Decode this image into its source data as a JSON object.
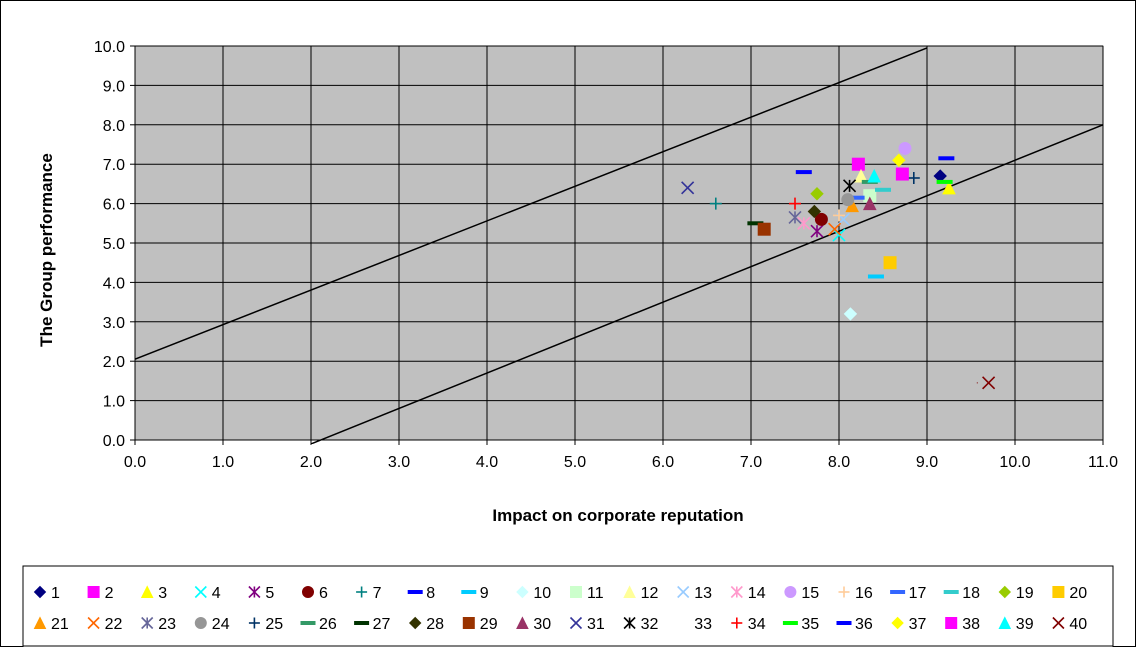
{
  "chart_data": {
    "type": "scatter",
    "title": "",
    "xlabel": "Impact on corporate reputation",
    "ylabel": "The Group performance",
    "xlim": [
      0.0,
      11.0
    ],
    "ylim": [
      0.0,
      10.0
    ],
    "x_ticks": [
      "0.0",
      "1.0",
      "2.0",
      "3.0",
      "4.0",
      "5.0",
      "6.0",
      "7.0",
      "8.0",
      "9.0",
      "10.0",
      "11.0"
    ],
    "y_ticks": [
      "0.0",
      "1.0",
      "2.0",
      "3.0",
      "4.0",
      "5.0",
      "6.0",
      "7.0",
      "8.0",
      "9.0",
      "10.0"
    ],
    "grid": true,
    "plot_background": "#c0c0c0",
    "legend_position": "bottom",
    "reference_lines": [
      {
        "x": [
          0.0,
          9.0
        ],
        "y": [
          2.05,
          9.95
        ]
      },
      {
        "x": [
          2.0,
          11.0
        ],
        "y": [
          -0.1,
          8.0
        ]
      }
    ],
    "series": [
      {
        "name": "1",
        "marker": "diamond",
        "color": "#000080",
        "x": 9.15,
        "y": 6.7
      },
      {
        "name": "2",
        "marker": "square",
        "color": "#ff00ff",
        "x": 8.22,
        "y": 7.0
      },
      {
        "name": "3",
        "marker": "triangle",
        "color": "#ffff00",
        "x": 9.25,
        "y": 6.4
      },
      {
        "name": "4",
        "marker": "x",
        "color": "#00ffff",
        "x": 8.0,
        "y": 5.2
      },
      {
        "name": "5",
        "marker": "star",
        "color": "#800080",
        "x": 7.75,
        "y": 5.3
      },
      {
        "name": "6",
        "marker": "circle",
        "color": "#800000",
        "x": 7.8,
        "y": 5.6
      },
      {
        "name": "7",
        "marker": "plus",
        "color": "#008080",
        "x": 6.6,
        "y": 6.0
      },
      {
        "name": "8",
        "marker": "dash",
        "color": "#0000ff",
        "x": 7.6,
        "y": 6.8
      },
      {
        "name": "9",
        "marker": "dash",
        "color": "#00ccff",
        "x": 8.42,
        "y": 4.15
      },
      {
        "name": "10",
        "marker": "diamond",
        "color": "#ccffff",
        "x": 8.13,
        "y": 3.2
      },
      {
        "name": "11",
        "marker": "square",
        "color": "#ccffcc",
        "x": 8.35,
        "y": 6.2
      },
      {
        "name": "12",
        "marker": "triangle",
        "color": "#ffff99",
        "x": 8.25,
        "y": 6.7
      },
      {
        "name": "13",
        "marker": "x",
        "color": "#99ccff",
        "x": 8.05,
        "y": 5.6
      },
      {
        "name": "14",
        "marker": "star",
        "color": "#ff99cc",
        "x": 7.6,
        "y": 5.5
      },
      {
        "name": "15",
        "marker": "circle",
        "color": "#cc99ff",
        "x": 8.75,
        "y": 7.4
      },
      {
        "name": "16",
        "marker": "plus",
        "color": "#ffcc99",
        "x": 8.0,
        "y": 5.7
      },
      {
        "name": "17",
        "marker": "dash",
        "color": "#3366ff",
        "x": 8.2,
        "y": 6.15
      },
      {
        "name": "18",
        "marker": "dash",
        "color": "#33cccc",
        "x": 8.5,
        "y": 6.35
      },
      {
        "name": "19",
        "marker": "diamond",
        "color": "#99cc00",
        "x": 7.75,
        "y": 6.25
      },
      {
        "name": "20",
        "marker": "square",
        "color": "#ffcc00",
        "x": 8.58,
        "y": 4.5
      },
      {
        "name": "21",
        "marker": "triangle",
        "color": "#ff9900",
        "x": 8.15,
        "y": 5.95
      },
      {
        "name": "22",
        "marker": "x",
        "color": "#ff6600",
        "x": 7.95,
        "y": 5.35
      },
      {
        "name": "23",
        "marker": "star",
        "color": "#666699",
        "x": 7.5,
        "y": 5.65
      },
      {
        "name": "24",
        "marker": "circle",
        "color": "#969696",
        "x": 8.1,
        "y": 6.1
      },
      {
        "name": "25",
        "marker": "plus",
        "color": "#003366",
        "x": 8.85,
        "y": 6.65
      },
      {
        "name": "26",
        "marker": "dash",
        "color": "#339966",
        "x": 8.35,
        "y": 6.55
      },
      {
        "name": "27",
        "marker": "dash",
        "color": "#003300",
        "x": 7.05,
        "y": 5.5
      },
      {
        "name": "28",
        "marker": "diamond",
        "color": "#333300",
        "x": 7.72,
        "y": 5.8
      },
      {
        "name": "29",
        "marker": "square",
        "color": "#993300",
        "x": 7.15,
        "y": 5.35
      },
      {
        "name": "30",
        "marker": "triangle",
        "color": "#993366",
        "x": 8.35,
        "y": 6.0
      },
      {
        "name": "31",
        "marker": "x",
        "color": "#333399",
        "x": 6.28,
        "y": 6.4
      },
      {
        "name": "32",
        "marker": "star",
        "color": "#000000",
        "x": 8.12,
        "y": 6.45
      },
      {
        "name": "33",
        "marker": "none",
        "color": "#c0c0c0",
        "x": 9.6,
        "y": 1.45
      },
      {
        "name": "34",
        "marker": "plus",
        "color": "#ff0000",
        "x": 7.5,
        "y": 6.0
      },
      {
        "name": "35",
        "marker": "dash",
        "color": "#00ff00",
        "x": 9.2,
        "y": 6.55
      },
      {
        "name": "36",
        "marker": "dash",
        "color": "#0000ff",
        "x": 9.22,
        "y": 7.15
      },
      {
        "name": "37",
        "marker": "diamond",
        "color": "#ffff00",
        "x": 8.68,
        "y": 7.1
      },
      {
        "name": "38",
        "marker": "square",
        "color": "#ff00ff",
        "x": 8.72,
        "y": 6.75
      },
      {
        "name": "39",
        "marker": "triangle",
        "color": "#00ffff",
        "x": 8.4,
        "y": 6.7
      },
      {
        "name": "40",
        "marker": "x",
        "color": "#800000",
        "x": 9.7,
        "y": 1.45
      }
    ]
  }
}
